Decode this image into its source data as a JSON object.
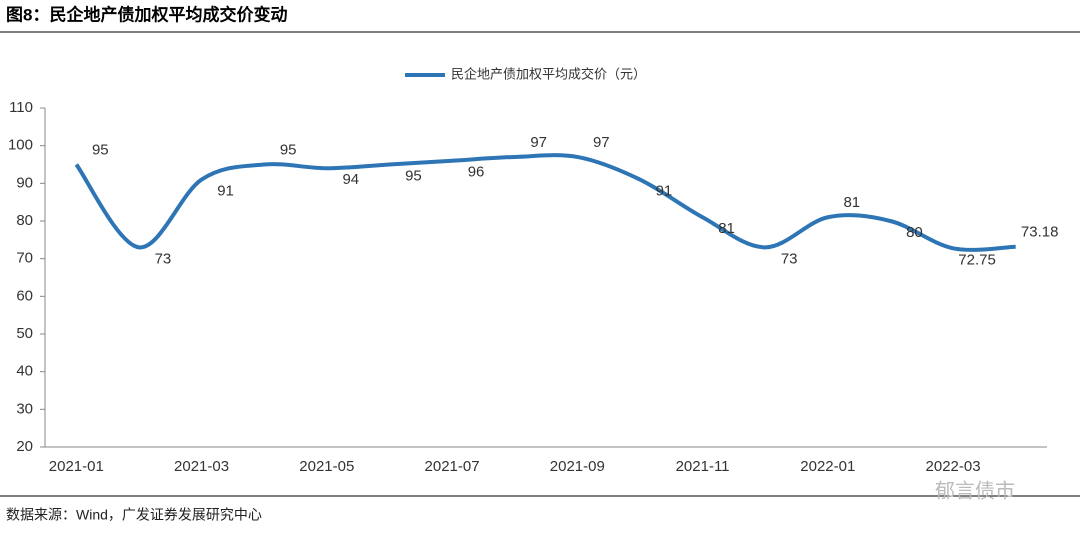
{
  "header": {
    "title": "图8：民企地产债加权平均成交价变动"
  },
  "chart_data": {
    "type": "line",
    "categories": [
      "2021-01",
      null,
      "2021-03",
      null,
      "2021-05",
      null,
      "2021-07",
      null,
      "2021-09",
      null,
      "2021-11",
      null,
      "2022-01",
      null,
      "2022-03",
      null
    ],
    "series": [
      {
        "name": "民企地产债加权平均成交价（元）",
        "color": "#2e75b6",
        "values": [
          95,
          73,
          91,
          95,
          94,
          95,
          96,
          97,
          97,
          91,
          81,
          73,
          81,
          80,
          72.75,
          73.18
        ]
      }
    ],
    "ylim": [
      20,
      110
    ],
    "yticks": [
      20,
      30,
      40,
      50,
      60,
      70,
      80,
      90,
      100,
      110
    ],
    "legend": "top",
    "grid": false
  },
  "footer": {
    "source": "数据来源：Wind，广发证券发展研究中心",
    "watermark": "郁言债市"
  }
}
